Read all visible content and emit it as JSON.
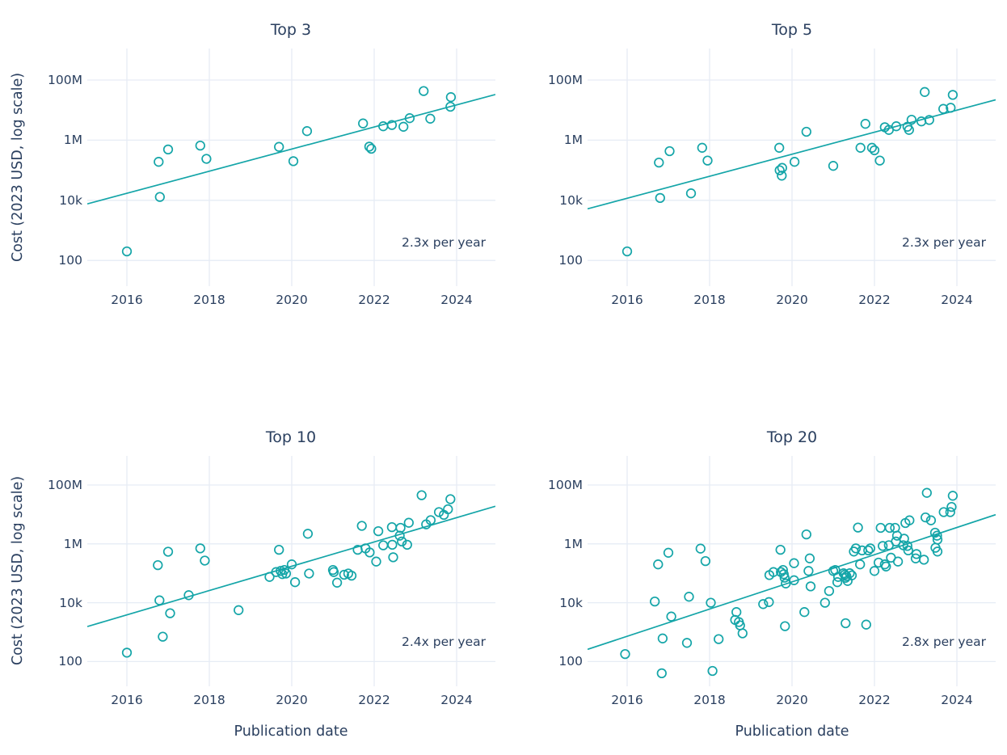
{
  "figure": {
    "y_axis_title": "Cost (2023 USD, log scale)",
    "x_axis_title": "Publication date",
    "colors": {
      "accent": "#14a5a8",
      "text": "#2a3f5f",
      "grid": "#e6ecf5",
      "background": "#ffffff"
    },
    "x_tick_labels": [
      "2016",
      "2018",
      "2020",
      "2022",
      "2024"
    ],
    "x_tick_years": [
      2016,
      2018,
      2020,
      2022,
      2024
    ],
    "y_tick_labels": [
      "100M",
      "1M",
      "10k",
      "100"
    ],
    "y_tick_log10": [
      8,
      6,
      4,
      2
    ],
    "x_range": [
      2015.04,
      2024.94
    ],
    "y_log10_range": [
      1.15,
      9.0
    ],
    "grid": "on",
    "legend": "none"
  },
  "chart_data": [
    {
      "type": "scatter",
      "title": "Top 3",
      "annotation": "2.3x per year",
      "growth_per_year": 2.3,
      "xlabel": "Publication date",
      "ylabel": "Cost (2023 USD, log scale)",
      "x_range": [
        2015.04,
        2024.94
      ],
      "y_scale": "log",
      "trend": {
        "x": [
          2015.04,
          2024.94
        ],
        "cost": [
          7600.0,
          33000000.0
        ]
      },
      "points": [
        [
          2016.0,
          200.0
        ],
        [
          2016.77,
          190000.0
        ],
        [
          2016.8,
          13000.0
        ],
        [
          2017.0,
          490000.0
        ],
        [
          2017.78,
          660000.0
        ],
        [
          2017.93,
          240000.0
        ],
        [
          2019.69,
          600000.0
        ],
        [
          2020.04,
          200000.0
        ],
        [
          2020.37,
          2000000.0
        ],
        [
          2021.73,
          3600000.0
        ],
        [
          2021.88,
          610000.0
        ],
        [
          2021.93,
          520000.0
        ],
        [
          2022.22,
          2900000.0
        ],
        [
          2022.43,
          3200000.0
        ],
        [
          2022.71,
          2800000.0
        ],
        [
          2022.86,
          5400000.0
        ],
        [
          2023.2,
          43000000.0
        ],
        [
          2023.36,
          5200000.0
        ],
        [
          2023.85,
          13000000.0
        ],
        [
          2023.86,
          27000000.0
        ]
      ]
    },
    {
      "type": "scatter",
      "title": "Top 5",
      "annotation": "2.3x per year",
      "growth_per_year": 2.3,
      "xlabel": "Publication date",
      "ylabel": "Cost (2023 USD, log scale)",
      "x_range": [
        2015.04,
        2024.94
      ],
      "y_scale": "log",
      "trend": {
        "x": [
          2015.04,
          2024.94
        ],
        "cost": [
          5200.0,
          22000000.0
        ]
      },
      "points": [
        [
          2016.0,
          200.0
        ],
        [
          2016.77,
          180000.0
        ],
        [
          2016.8,
          12000.0
        ],
        [
          2017.03,
          430000.0
        ],
        [
          2017.55,
          17000.0
        ],
        [
          2017.82,
          560000.0
        ],
        [
          2017.95,
          210000.0
        ],
        [
          2019.69,
          560000.0
        ],
        [
          2019.7,
          100000.0
        ],
        [
          2019.75,
          66000.0
        ],
        [
          2019.76,
          120000.0
        ],
        [
          2020.06,
          190000.0
        ],
        [
          2020.35,
          1900000.0
        ],
        [
          2021.0,
          140000.0
        ],
        [
          2021.66,
          560000.0
        ],
        [
          2021.78,
          3500000.0
        ],
        [
          2021.94,
          560000.0
        ],
        [
          2022.0,
          460000.0
        ],
        [
          2022.13,
          210000.0
        ],
        [
          2022.25,
          2700000.0
        ],
        [
          2022.35,
          2200000.0
        ],
        [
          2022.53,
          2900000.0
        ],
        [
          2022.8,
          2800000.0
        ],
        [
          2022.84,
          2200000.0
        ],
        [
          2022.9,
          4800000.0
        ],
        [
          2023.14,
          4200000.0
        ],
        [
          2023.22,
          40000000.0
        ],
        [
          2023.33,
          4700000.0
        ],
        [
          2023.67,
          11000000.0
        ],
        [
          2023.85,
          12000000.0
        ],
        [
          2023.9,
          32000000.0
        ]
      ]
    },
    {
      "type": "scatter",
      "title": "Top 10",
      "annotation": "2.4x per year",
      "growth_per_year": 2.4,
      "xlabel": "Publication date",
      "ylabel": "Cost (2023 USD, log scale)",
      "x_range": [
        2015.04,
        2024.94
      ],
      "y_scale": "log",
      "trend": {
        "x": [
          2015.04,
          2024.94
        ],
        "cost": [
          1550.0,
          19000000.0
        ]
      },
      "points": [
        [
          2016.0,
          200.0
        ],
        [
          2016.75,
          190000.0
        ],
        [
          2016.79,
          12000.0
        ],
        [
          2016.87,
          700.0
        ],
        [
          2017.0,
          540000.0
        ],
        [
          2017.05,
          4400.0
        ],
        [
          2017.5,
          18000.0
        ],
        [
          2017.78,
          700000.0
        ],
        [
          2017.89,
          270000.0
        ],
        [
          2018.71,
          5600.0
        ],
        [
          2019.46,
          75000.0
        ],
        [
          2019.62,
          110000.0
        ],
        [
          2019.69,
          630000.0
        ],
        [
          2019.73,
          120000.0
        ],
        [
          2019.77,
          94000.0
        ],
        [
          2019.82,
          130000.0
        ],
        [
          2019.86,
          98000.0
        ],
        [
          2020.0,
          200000.0
        ],
        [
          2020.08,
          50000.0
        ],
        [
          2020.39,
          2200000.0
        ],
        [
          2020.42,
          98000.0
        ],
        [
          2021.0,
          130000.0
        ],
        [
          2021.02,
          110000.0
        ],
        [
          2021.1,
          48000.0
        ],
        [
          2021.27,
          89000.0
        ],
        [
          2021.37,
          98000.0
        ],
        [
          2021.45,
          83000.0
        ],
        [
          2021.6,
          630000.0
        ],
        [
          2021.7,
          4100000.0
        ],
        [
          2021.79,
          700000.0
        ],
        [
          2021.89,
          510000.0
        ],
        [
          2022.05,
          250000.0
        ],
        [
          2022.1,
          2700000.0
        ],
        [
          2022.22,
          890000.0
        ],
        [
          2022.43,
          3700000.0
        ],
        [
          2022.44,
          930000.0
        ],
        [
          2022.46,
          350000.0
        ],
        [
          2022.62,
          1900000.0
        ],
        [
          2022.64,
          3500000.0
        ],
        [
          2022.67,
          1200000.0
        ],
        [
          2022.8,
          930000.0
        ],
        [
          2022.84,
          5200000.0
        ],
        [
          2023.15,
          45000000.0
        ],
        [
          2023.26,
          4600000.0
        ],
        [
          2023.37,
          6400000.0
        ],
        [
          2023.57,
          12000000.0
        ],
        [
          2023.69,
          9700000.0
        ],
        [
          2023.79,
          15000000.0
        ],
        [
          2023.85,
          33000000.0
        ]
      ]
    },
    {
      "type": "scatter",
      "title": "Top 20",
      "annotation": "2.8x per year",
      "growth_per_year": 2.8,
      "xlabel": "Publication date",
      "ylabel": "Cost (2023 USD, log scale)",
      "x_range": [
        2015.04,
        2024.94
      ],
      "y_scale": "log",
      "trend": {
        "x": [
          2015.04,
          2024.94
        ],
        "cost": [
          260.0,
          9800000.0
        ]
      },
      "points": [
        [
          2015.95,
          180.0
        ],
        [
          2016.67,
          11000.0
        ],
        [
          2016.75,
          200000.0
        ],
        [
          2016.84,
          40.0
        ],
        [
          2016.86,
          610.0
        ],
        [
          2017.0,
          500000.0
        ],
        [
          2017.07,
          3400.0
        ],
        [
          2017.45,
          430.0
        ],
        [
          2017.5,
          16000.0
        ],
        [
          2017.78,
          690000.0
        ],
        [
          2017.9,
          260000.0
        ],
        [
          2018.03,
          10000.0
        ],
        [
          2018.07,
          48.0
        ],
        [
          2018.22,
          580.0
        ],
        [
          2018.62,
          2600.0
        ],
        [
          2018.65,
          4800.0
        ],
        [
          2018.71,
          2200.0
        ],
        [
          2018.74,
          1700.0
        ],
        [
          2018.8,
          910.0
        ],
        [
          2019.3,
          9000.0
        ],
        [
          2019.44,
          10500.0
        ],
        [
          2019.45,
          87000.0
        ],
        [
          2019.55,
          110000.0
        ],
        [
          2019.72,
          630000.0
        ],
        [
          2019.73,
          110000.0
        ],
        [
          2019.78,
          130000.0
        ],
        [
          2019.8,
          93000.0
        ],
        [
          2019.82,
          71000.0
        ],
        [
          2019.83,
          1600.0
        ],
        [
          2019.85,
          45000.0
        ],
        [
          2020.05,
          220000.0
        ],
        [
          2020.05,
          58000.0
        ],
        [
          2020.3,
          4800.0
        ],
        [
          2020.35,
          2100000.0
        ],
        [
          2020.4,
          120000.0
        ],
        [
          2020.43,
          320000.0
        ],
        [
          2020.45,
          36000.0
        ],
        [
          2020.8,
          10000.0
        ],
        [
          2020.9,
          25000.0
        ],
        [
          2021.0,
          120000.0
        ],
        [
          2021.05,
          130000.0
        ],
        [
          2021.1,
          50000.0
        ],
        [
          2021.12,
          75000.0
        ],
        [
          2021.25,
          100000.0
        ],
        [
          2021.28,
          90000.0
        ],
        [
          2021.3,
          70000.0
        ],
        [
          2021.3,
          2000.0
        ],
        [
          2021.32,
          80000.0
        ],
        [
          2021.35,
          55000.0
        ],
        [
          2021.4,
          100000.0
        ],
        [
          2021.45,
          85000.0
        ],
        [
          2021.5,
          550000.0
        ],
        [
          2021.55,
          700000.0
        ],
        [
          2021.6,
          3600000.0
        ],
        [
          2021.65,
          200000.0
        ],
        [
          2021.7,
          600000.0
        ],
        [
          2021.8,
          1800.0
        ],
        [
          2021.85,
          600000.0
        ],
        [
          2021.9,
          700000.0
        ],
        [
          2022.0,
          120000.0
        ],
        [
          2022.1,
          230000.0
        ],
        [
          2022.15,
          3500000.0
        ],
        [
          2022.2,
          850000.0
        ],
        [
          2022.25,
          200000.0
        ],
        [
          2022.28,
          170000.0
        ],
        [
          2022.35,
          900000.0
        ],
        [
          2022.37,
          3500000.0
        ],
        [
          2022.4,
          340000.0
        ],
        [
          2022.5,
          3500000.0
        ],
        [
          2022.52,
          1200000.0
        ],
        [
          2022.55,
          1900000.0
        ],
        [
          2022.57,
          250000.0
        ],
        [
          2022.7,
          900000.0
        ],
        [
          2022.72,
          1500000.0
        ],
        [
          2022.75,
          5100000.0
        ],
        [
          2022.8,
          850000.0
        ],
        [
          2022.82,
          600000.0
        ],
        [
          2022.85,
          6300000.0
        ],
        [
          2023.0,
          320000.0
        ],
        [
          2023.02,
          450000.0
        ],
        [
          2023.2,
          290000.0
        ],
        [
          2023.24,
          7900000.0
        ],
        [
          2023.27,
          54000000.0
        ],
        [
          2023.37,
          6300000.0
        ],
        [
          2023.47,
          2400000.0
        ],
        [
          2023.48,
          740000.0
        ],
        [
          2023.52,
          1900000.0
        ],
        [
          2023.53,
          1400000.0
        ],
        [
          2023.53,
          550000.0
        ],
        [
          2023.68,
          12000000.0
        ],
        [
          2023.84,
          12000000.0
        ],
        [
          2023.87,
          18000000.0
        ],
        [
          2023.9,
          43000000.0
        ]
      ]
    }
  ]
}
